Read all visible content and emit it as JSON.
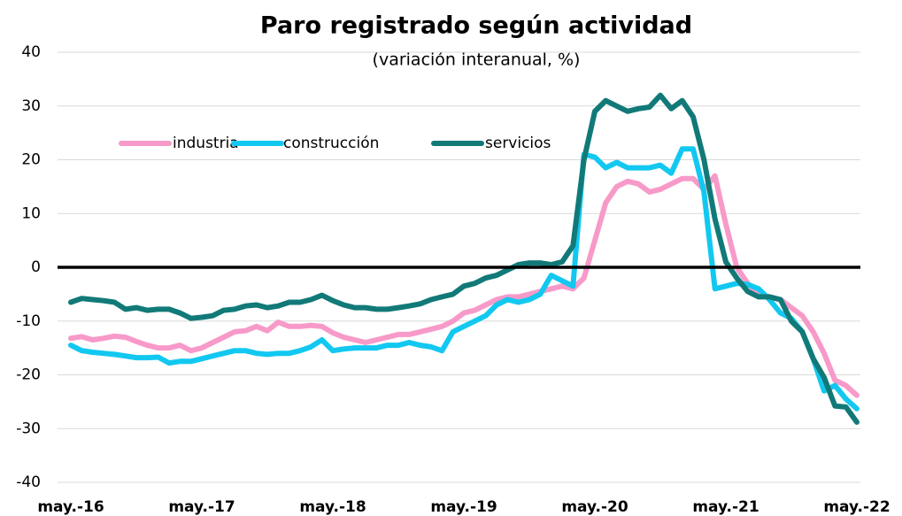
{
  "chart_data": {
    "type": "line",
    "title": "Paro registrado según actividad",
    "subtitle": "(variación interanual, %)",
    "categories": [
      "may.-16",
      null,
      null,
      null,
      null,
      null,
      null,
      null,
      null,
      null,
      null,
      null,
      "may.-17",
      null,
      null,
      null,
      null,
      null,
      null,
      null,
      null,
      null,
      null,
      null,
      "may.-18",
      null,
      null,
      null,
      null,
      null,
      null,
      null,
      null,
      null,
      null,
      null,
      "may.-19",
      null,
      null,
      null,
      null,
      null,
      null,
      null,
      null,
      null,
      null,
      null,
      "may.-20",
      null,
      null,
      null,
      null,
      null,
      null,
      null,
      null,
      null,
      null,
      null,
      "may.-21",
      null,
      null,
      null,
      null,
      null,
      null,
      null,
      null,
      null,
      null,
      null,
      "may.-22"
    ],
    "series": [
      {
        "name": "industria",
        "color": "#f79ac9",
        "values": [
          -13.2,
          -12.9,
          -13.5,
          -13.2,
          -12.8,
          -13,
          -13.8,
          -14.5,
          -15,
          -15,
          -14.5,
          -15.5,
          -15,
          -14,
          -13,
          -12,
          -11.8,
          -11,
          -11.8,
          -10.2,
          -11,
          -11,
          -10.8,
          -11,
          -12.2,
          -13,
          -13.5,
          -14,
          -13.5,
          -13,
          -12.5,
          -12.5,
          -12,
          -11.5,
          -11,
          -10,
          -8.5,
          -8,
          -7,
          -6,
          -5.5,
          -5.5,
          -5,
          -4.5,
          -4,
          -3.5,
          -4,
          -2,
          5,
          12,
          15,
          16,
          15.5,
          14,
          14.5,
          15.5,
          16.5,
          16.5,
          14.5,
          17,
          8,
          0,
          -3,
          -5,
          -5.5,
          -6,
          -7.5,
          -9,
          -12,
          -16,
          -21,
          -22,
          -23.8
        ]
      },
      {
        "name": "construcción",
        "color": "#12c8f0",
        "values": [
          -14.5,
          -15.5,
          -15.8,
          -16,
          -16.2,
          -16.5,
          -16.8,
          -16.8,
          -16.7,
          -17.8,
          -17.5,
          -17.5,
          -17,
          -16.5,
          -16,
          -15.5,
          -15.5,
          -16,
          -16.2,
          -16,
          -16,
          -15.5,
          -14.8,
          -13.5,
          -15.5,
          -15.2,
          -15,
          -15,
          -15,
          -14.5,
          -14.5,
          -14,
          -14.5,
          -14.8,
          -15.5,
          -12,
          -11,
          -10,
          -9,
          -7,
          -6,
          -6.5,
          -6,
          -5,
          -1.5,
          -2.5,
          -3.5,
          21,
          20.5,
          18.5,
          19.5,
          18.5,
          18.5,
          18.5,
          19,
          17.5,
          22,
          22,
          14,
          -4,
          -3.5,
          -3,
          -3.2,
          -4,
          -6,
          -8.5,
          -9.5,
          -12,
          -17,
          -23,
          -22,
          -24.5,
          -26.3
        ]
      },
      {
        "name": "servicios",
        "color": "#117a78",
        "values": [
          -6.5,
          -5.8,
          -6,
          -6.2,
          -6.5,
          -7.8,
          -7.5,
          -8,
          -7.8,
          -7.8,
          -8.5,
          -9.5,
          -9.3,
          -9,
          -8,
          -7.8,
          -7.2,
          -7,
          -7.5,
          -7.2,
          -6.5,
          -6.5,
          -6,
          -5.2,
          -6.2,
          -7,
          -7.5,
          -7.5,
          -7.8,
          -7.8,
          -7.5,
          -7.2,
          -6.8,
          -6,
          -5.5,
          -5,
          -3.5,
          -3,
          -2,
          -1.5,
          -0.5,
          0.5,
          0.8,
          0.8,
          0.5,
          1,
          4,
          20,
          29,
          31,
          30,
          29,
          29.5,
          29.8,
          32,
          29.5,
          31,
          28,
          20,
          9,
          1,
          -2,
          -4.5,
          -5.5,
          -5.5,
          -6,
          -10,
          -12,
          -17,
          -20.5,
          -25.8,
          -26,
          -28.8
        ]
      }
    ],
    "ylim": [
      -40,
      40
    ],
    "yticks": [
      -40,
      -30,
      -20,
      -10,
      0,
      10,
      20,
      30,
      40
    ],
    "grid": true
  }
}
